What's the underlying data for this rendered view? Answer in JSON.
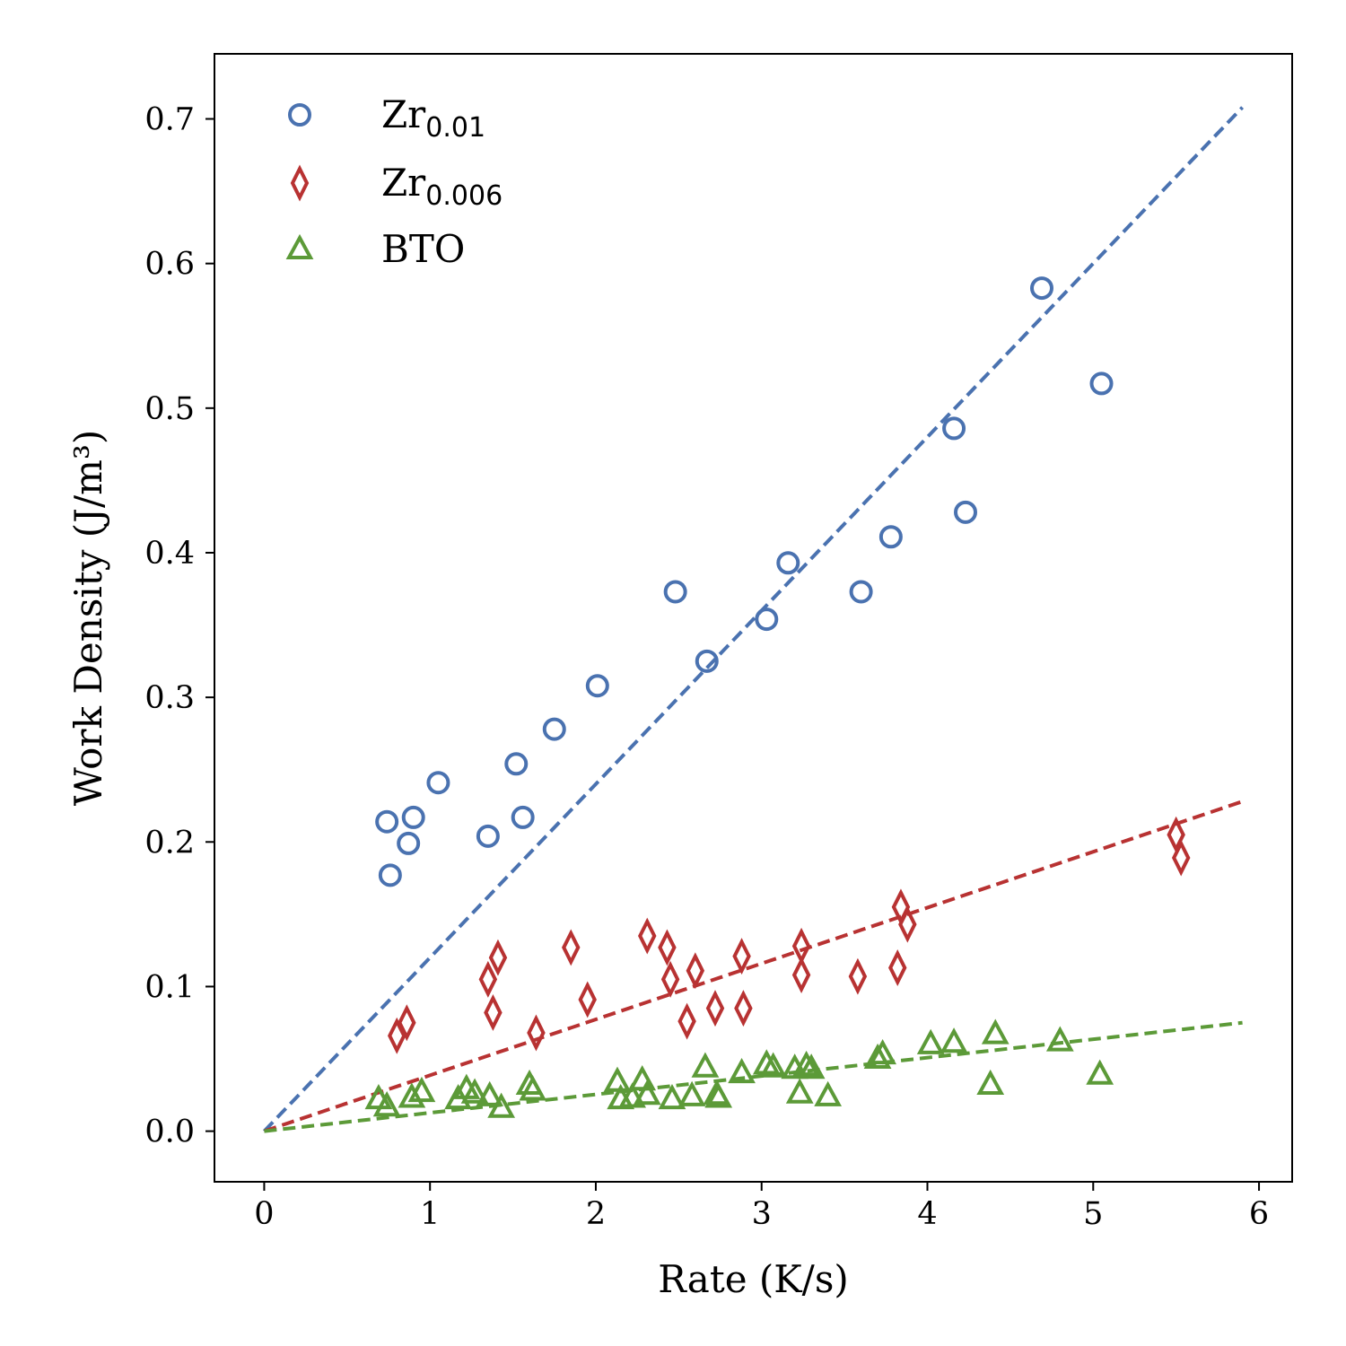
{
  "chart_data": {
    "type": "scatter",
    "xlabel": "Rate (K/s)",
    "ylabel": "Work Density (J/m³)",
    "xlim": [
      -0.3,
      6.2
    ],
    "ylim": [
      -0.035,
      0.745
    ],
    "xticks": [
      0,
      1,
      2,
      3,
      4,
      5,
      6
    ],
    "yticks": [
      0.0,
      0.1,
      0.2,
      0.3,
      0.4,
      0.5,
      0.6,
      0.7
    ],
    "grid": false,
    "legend_position": "top-left",
    "series": [
      {
        "name": "Zr0.01",
        "legend_base": "Zr",
        "legend_sub": "0.01",
        "marker": "circle",
        "color": "#4a72b0",
        "fit": {
          "x": [
            0,
            5.9
          ],
          "y": [
            0.0,
            0.708
          ]
        },
        "points": [
          [
            0.74,
            0.214
          ],
          [
            0.76,
            0.177
          ],
          [
            0.87,
            0.199
          ],
          [
            0.9,
            0.217
          ],
          [
            1.05,
            0.241
          ],
          [
            1.35,
            0.204
          ],
          [
            1.52,
            0.254
          ],
          [
            1.56,
            0.217
          ],
          [
            1.75,
            0.278
          ],
          [
            2.01,
            0.308
          ],
          [
            2.48,
            0.373
          ],
          [
            2.67,
            0.325
          ],
          [
            3.03,
            0.354
          ],
          [
            3.16,
            0.393
          ],
          [
            3.6,
            0.373
          ],
          [
            3.78,
            0.411
          ],
          [
            4.16,
            0.486
          ],
          [
            4.23,
            0.428
          ],
          [
            4.69,
            0.583
          ],
          [
            5.05,
            0.517
          ]
        ]
      },
      {
        "name": "Zr0.006",
        "legend_base": "Zr",
        "legend_sub": "0.006",
        "marker": "diamond",
        "color": "#b83232",
        "fit": {
          "x": [
            0,
            5.9
          ],
          "y": [
            0.0,
            0.228
          ]
        },
        "points": [
          [
            0.8,
            0.066
          ],
          [
            0.86,
            0.075
          ],
          [
            1.35,
            0.105
          ],
          [
            1.38,
            0.082
          ],
          [
            1.41,
            0.12
          ],
          [
            1.64,
            0.068
          ],
          [
            1.85,
            0.127
          ],
          [
            1.95,
            0.091
          ],
          [
            2.31,
            0.135
          ],
          [
            2.43,
            0.127
          ],
          [
            2.45,
            0.105
          ],
          [
            2.55,
            0.076
          ],
          [
            2.6,
            0.111
          ],
          [
            2.72,
            0.085
          ],
          [
            2.88,
            0.121
          ],
          [
            2.89,
            0.085
          ],
          [
            3.24,
            0.128
          ],
          [
            3.24,
            0.108
          ],
          [
            3.58,
            0.107
          ],
          [
            3.82,
            0.113
          ],
          [
            3.84,
            0.155
          ],
          [
            3.88,
            0.143
          ],
          [
            5.5,
            0.205
          ],
          [
            5.53,
            0.189
          ]
        ]
      },
      {
        "name": "BTO",
        "legend_base": "BTO",
        "legend_sub": "",
        "marker": "triangle",
        "color": "#5c9a38",
        "fit": {
          "x": [
            0,
            5.9
          ],
          "y": [
            0.0,
            0.075
          ]
        },
        "points": [
          [
            0.69,
            0.022
          ],
          [
            0.74,
            0.017
          ],
          [
            0.89,
            0.023
          ],
          [
            0.95,
            0.027
          ],
          [
            1.17,
            0.022
          ],
          [
            1.22,
            0.029
          ],
          [
            1.27,
            0.026
          ],
          [
            1.36,
            0.024
          ],
          [
            1.43,
            0.016
          ],
          [
            1.6,
            0.032
          ],
          [
            1.62,
            0.028
          ],
          [
            2.13,
            0.034
          ],
          [
            2.15,
            0.022
          ],
          [
            2.22,
            0.023
          ],
          [
            2.28,
            0.035
          ],
          [
            2.31,
            0.025
          ],
          [
            2.46,
            0.022
          ],
          [
            2.58,
            0.024
          ],
          [
            2.66,
            0.044
          ],
          [
            2.73,
            0.025
          ],
          [
            2.74,
            0.023
          ],
          [
            2.88,
            0.04
          ],
          [
            3.03,
            0.046
          ],
          [
            3.07,
            0.044
          ],
          [
            3.2,
            0.043
          ],
          [
            3.23,
            0.026
          ],
          [
            3.27,
            0.045
          ],
          [
            3.3,
            0.043
          ],
          [
            3.4,
            0.024
          ],
          [
            3.7,
            0.05
          ],
          [
            3.73,
            0.053
          ],
          [
            4.02,
            0.06
          ],
          [
            4.16,
            0.061
          ],
          [
            4.38,
            0.032
          ],
          [
            4.41,
            0.067
          ],
          [
            4.8,
            0.062
          ],
          [
            5.04,
            0.039
          ]
        ]
      }
    ]
  }
}
